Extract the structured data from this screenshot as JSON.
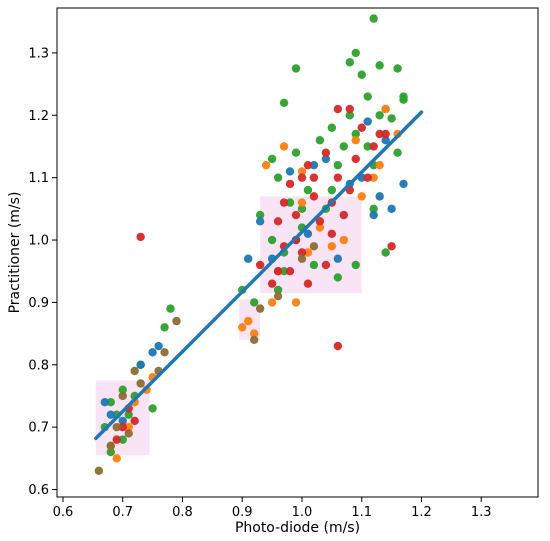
{
  "chart_data": {
    "type": "scatter",
    "xlabel": "Photo-diode (m/s)",
    "ylabel": "Practitioner (m/s)",
    "xlim": [
      0.59,
      1.395
    ],
    "ylim": [
      0.588,
      1.372
    ],
    "xticks": [
      0.6,
      0.7,
      0.8,
      0.9,
      1.0,
      1.1,
      1.2,
      1.3
    ],
    "xtick_labels": [
      "0.6",
      "0.7",
      "0.8",
      "0.9",
      "1.0",
      "1.1",
      "1.2",
      "1.3"
    ],
    "yticks": [
      0.6,
      0.7,
      0.8,
      0.9,
      1.0,
      1.1,
      1.2,
      1.3
    ],
    "ytick_labels": [
      "0.6",
      "0.7",
      "0.8",
      "0.9",
      "1.0",
      "1.1",
      "1.2",
      "1.3"
    ],
    "grid": false,
    "legend": "none",
    "colors": {
      "blue": "#1f77b4",
      "orange": "#ff7f0e",
      "green": "#2ca02c",
      "red": "#d62728",
      "olive": "#8c6d31",
      "purple": "#9467bd",
      "fit_line": "#1f77b4",
      "highlight": "#f7d9f2"
    },
    "fit_line": {
      "x": [
        0.655,
        1.2
      ],
      "y": [
        0.682,
        1.205
      ]
    },
    "highlight_boxes": [
      {
        "x": [
          0.655,
          0.745
        ],
        "y": [
          0.655,
          0.775
        ]
      },
      {
        "x": [
          0.895,
          0.93
        ],
        "y": [
          0.84,
          0.905
        ]
      },
      {
        "x": [
          0.93,
          1.1
        ],
        "y": [
          0.915,
          1.07
        ]
      }
    ],
    "series": [
      {
        "color": "green",
        "points": [
          [
            1.12,
            1.355
          ],
          [
            1.08,
            1.285
          ],
          [
            1.09,
            1.3
          ],
          [
            1.13,
            1.28
          ],
          [
            1.16,
            1.275
          ],
          [
            1.17,
            1.23
          ],
          [
            1.1,
            1.265
          ],
          [
            0.99,
            1.275
          ],
          [
            0.97,
            1.22
          ],
          [
            1.11,
            1.23
          ],
          [
            1.14,
            1.21
          ],
          [
            1.17,
            1.225
          ],
          [
            1.05,
            1.18
          ],
          [
            1.13,
            1.2
          ],
          [
            1.15,
            1.195
          ],
          [
            1.03,
            1.16
          ],
          [
            1.07,
            1.15
          ],
          [
            0.99,
            1.14
          ],
          [
            1.09,
            1.17
          ],
          [
            0.95,
            1.13
          ],
          [
            0.96,
            1.1
          ],
          [
            0.98,
            1.06
          ],
          [
            1.01,
            1.08
          ],
          [
            1.04,
            1.05
          ],
          [
            1.06,
            1.12
          ],
          [
            1.12,
            1.12
          ],
          [
            1.16,
            1.14
          ],
          [
            0.93,
            1.04
          ],
          [
            0.95,
            1.0
          ],
          [
            0.97,
            0.98
          ],
          [
            1.0,
            1.02
          ],
          [
            1.02,
            0.96
          ],
          [
            1.06,
            0.94
          ],
          [
            1.09,
            0.96
          ],
          [
            1.14,
            0.98
          ],
          [
            0.9,
            0.92
          ],
          [
            0.92,
            0.9
          ],
          [
            0.96,
            0.92
          ],
          [
            0.78,
            0.89
          ],
          [
            0.77,
            0.86
          ],
          [
            0.73,
            0.8
          ],
          [
            0.7,
            0.76
          ],
          [
            0.68,
            0.74
          ],
          [
            0.69,
            0.72
          ],
          [
            0.67,
            0.7
          ],
          [
            0.7,
            0.68
          ],
          [
            0.71,
            0.72
          ],
          [
            0.72,
            0.75
          ],
          [
            0.68,
            0.66
          ],
          [
            0.75,
            0.73
          ],
          [
            1.08,
            1.2
          ],
          [
            1.11,
            1.15
          ],
          [
            1.0,
            1.05
          ],
          [
            0.97,
            0.95
          ],
          [
            1.05,
            1.08
          ],
          [
            1.12,
            1.05
          ]
        ]
      },
      {
        "color": "blue",
        "points": [
          [
            1.11,
            1.19
          ],
          [
            1.14,
            1.16
          ],
          [
            1.17,
            1.09
          ],
          [
            1.15,
            1.05
          ],
          [
            1.12,
            1.04
          ],
          [
            1.02,
            1.12
          ],
          [
            0.98,
            1.11
          ],
          [
            0.95,
            0.97
          ],
          [
            1.06,
            0.97
          ],
          [
            0.91,
            0.97
          ],
          [
            0.93,
            1.03
          ],
          [
            0.99,
            1.0
          ],
          [
            1.01,
            1.01
          ],
          [
            1.1,
            1.1
          ],
          [
            1.13,
            1.07
          ],
          [
            0.76,
            0.83
          ],
          [
            0.75,
            0.82
          ],
          [
            0.73,
            0.8
          ],
          [
            0.67,
            0.74
          ],
          [
            0.7,
            0.71
          ],
          [
            0.68,
            0.72
          ],
          [
            1.04,
            1.13
          ],
          [
            1.08,
            1.09
          ]
        ]
      },
      {
        "color": "orange",
        "points": [
          [
            1.14,
            1.21
          ],
          [
            1.09,
            1.16
          ],
          [
            1.12,
            1.1
          ],
          [
            1.16,
            1.17
          ],
          [
            0.97,
            1.15
          ],
          [
            0.94,
            1.12
          ],
          [
            1.01,
            0.98
          ],
          [
            1.05,
            0.99
          ],
          [
            0.91,
            0.87
          ],
          [
            0.92,
            0.85
          ],
          [
            0.9,
            0.86
          ],
          [
            0.95,
            0.9
          ],
          [
            0.99,
            0.9
          ],
          [
            0.96,
            0.95
          ],
          [
            1.0,
            1.06
          ],
          [
            1.03,
            1.02
          ],
          [
            1.07,
            1.0
          ],
          [
            1.1,
            1.07
          ],
          [
            0.74,
            0.76
          ],
          [
            0.72,
            0.74
          ],
          [
            0.68,
            0.67
          ],
          [
            0.69,
            0.65
          ],
          [
            0.71,
            0.7
          ],
          [
            0.75,
            0.78
          ],
          [
            1.13,
            1.12
          ],
          [
            1.0,
            1.11
          ]
        ]
      },
      {
        "color": "red",
        "points": [
          [
            1.08,
            1.21
          ],
          [
            1.06,
            1.21
          ],
          [
            1.1,
            1.18
          ],
          [
            1.14,
            1.17
          ],
          [
            1.12,
            1.15
          ],
          [
            1.04,
            1.14
          ],
          [
            1.01,
            1.12
          ],
          [
            0.98,
            1.09
          ],
          [
            1.02,
            1.1
          ],
          [
            1.06,
            1.1
          ],
          [
            1.09,
            1.13
          ],
          [
            1.11,
            1.1
          ],
          [
            1.05,
            1.06
          ],
          [
            0.97,
            1.06
          ],
          [
            0.96,
            1.03
          ],
          [
            0.99,
            1.04
          ],
          [
            1.03,
            1.03
          ],
          [
            1.07,
            1.04
          ],
          [
            0.97,
            0.99
          ],
          [
            1.0,
            0.98
          ],
          [
            1.04,
            0.96
          ],
          [
            0.98,
            0.95
          ],
          [
            1.01,
            0.93
          ],
          [
            0.96,
            0.95
          ],
          [
            0.95,
            0.93
          ],
          [
            1.06,
            0.83
          ],
          [
            0.73,
            1.005
          ],
          [
            1.15,
            0.99
          ],
          [
            1.02,
            1.07
          ],
          [
            1.08,
            1.08
          ],
          [
            1.13,
            1.17
          ],
          [
            0.7,
            0.7
          ],
          [
            0.69,
            0.68
          ],
          [
            0.71,
            0.73
          ],
          [
            0.72,
            0.71
          ],
          [
            1.0,
            1.1
          ],
          [
            0.99,
            1.0
          ],
          [
            0.93,
            0.96
          ],
          [
            1.05,
            1.01
          ]
        ]
      },
      {
        "color": "olive",
        "points": [
          [
            0.79,
            0.87
          ],
          [
            0.77,
            0.82
          ],
          [
            0.76,
            0.79
          ],
          [
            0.72,
            0.79
          ],
          [
            0.7,
            0.75
          ],
          [
            0.69,
            0.7
          ],
          [
            0.68,
            0.67
          ],
          [
            0.66,
            0.63
          ],
          [
            0.71,
            0.69
          ],
          [
            0.73,
            0.77
          ],
          [
            0.92,
            0.84
          ],
          [
            0.93,
            0.89
          ],
          [
            0.96,
            0.91
          ],
          [
            1.0,
            0.97
          ],
          [
            1.02,
            0.99
          ]
        ]
      }
    ]
  }
}
